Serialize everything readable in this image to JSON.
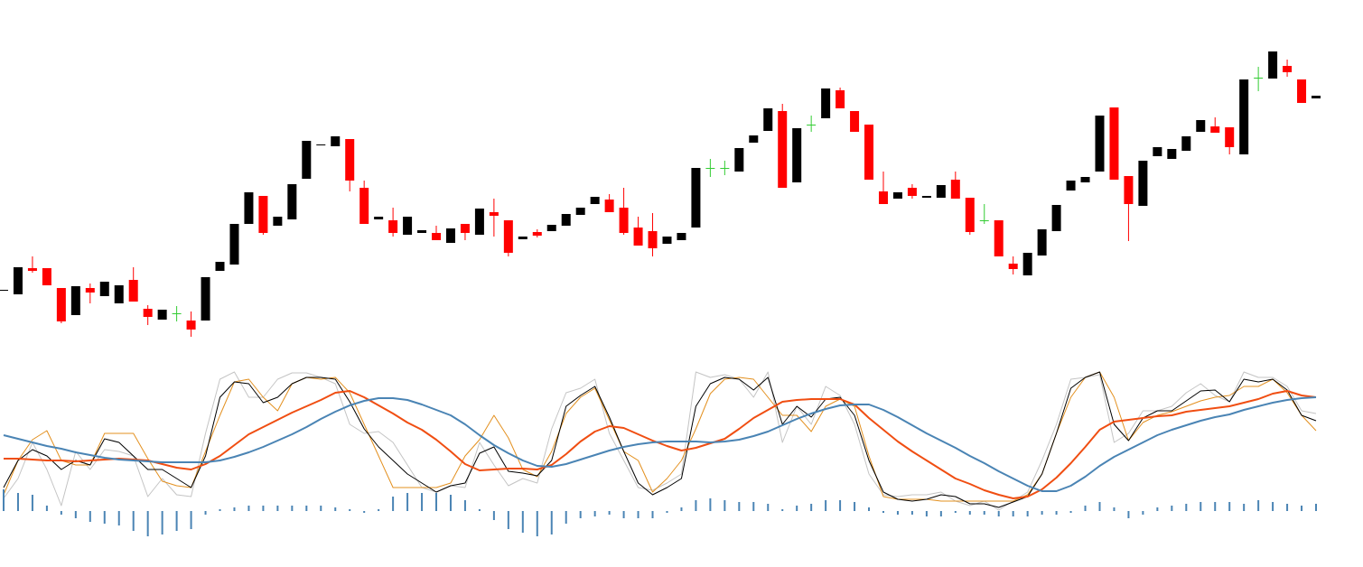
{
  "chart_data": [
    {
      "type": "candlestick",
      "ylim": [
        0,
        400
      ],
      "up_color": "#000000",
      "down_color": "#ff0000",
      "doji_color": "#33cc33",
      "open": [
        78,
        74,
        103,
        103,
        81,
        51,
        81,
        72,
        64,
        90,
        58,
        46,
        53,
        45,
        45,
        100,
        107,
        152,
        183,
        150,
        157,
        202,
        239,
        238,
        246,
        192,
        157,
        156,
        140,
        142,
        142,
        131,
        152,
        140,
        165,
        156,
        135,
        143,
        144,
        150,
        162,
        174,
        179,
        170,
        148,
        144,
        130,
        134,
        148,
        214,
        214,
        210,
        242,
        255,
        277,
        198,
        262,
        269,
        300,
        277,
        262,
        188,
        180,
        192,
        181,
        181,
        201,
        181,
        156,
        156,
        108,
        95,
        117,
        144,
        189,
        198,
        210,
        281,
        205,
        172,
        227,
        224,
        233,
        254,
        260,
        259,
        229,
        314,
        313,
        327,
        312,
        291
      ],
      "high": [
        79,
        104,
        116,
        103,
        81,
        83,
        86,
        88,
        84,
        104,
        62,
        57,
        61,
        55,
        93,
        110,
        152,
        187,
        183,
        160,
        196,
        244,
        240,
        249,
        246,
        200,
        160,
        170,
        160,
        145,
        150,
        147,
        152,
        169,
        180,
        156,
        138,
        146,
        151,
        163,
        170,
        182,
        185,
        192,
        160,
        164,
        138,
        142,
        214,
        224,
        222,
        236,
        250,
        280,
        285,
        258,
        272,
        302,
        303,
        277,
        262,
        210,
        187,
        196,
        183,
        195,
        210,
        181,
        174,
        156,
        116,
        120,
        146,
        173,
        200,
        204,
        272,
        281,
        205,
        222,
        237,
        235,
        249,
        267,
        270,
        259,
        312,
        326,
        343,
        334,
        312,
        294
      ],
      "low": [
        78,
        74,
        98,
        84,
        42,
        51,
        64,
        72,
        64,
        66,
        40,
        46,
        44,
        27,
        45,
        100,
        107,
        152,
        140,
        150,
        157,
        202,
        239,
        238,
        188,
        152,
        157,
        138,
        140,
        142,
        134,
        131,
        134,
        140,
        138,
        116,
        135,
        137,
        144,
        150,
        162,
        174,
        165,
        140,
        128,
        116,
        130,
        134,
        148,
        204,
        206,
        210,
        242,
        255,
        192,
        198,
        254,
        269,
        280,
        254,
        201,
        174,
        180,
        180,
        181,
        181,
        180,
        140,
        152,
        116,
        96,
        95,
        117,
        144,
        189,
        198,
        210,
        201,
        133,
        172,
        227,
        224,
        233,
        254,
        253,
        229,
        229,
        299,
        313,
        315,
        286,
        291
      ],
      "close": [
        79,
        104,
        100,
        84,
        44,
        83,
        76,
        88,
        84,
        66,
        49,
        57,
        53,
        35,
        93,
        110,
        152,
        187,
        142,
        160,
        196,
        244,
        240,
        249,
        200,
        152,
        160,
        142,
        160,
        145,
        134,
        147,
        142,
        169,
        161,
        120,
        138,
        139,
        151,
        163,
        170,
        182,
        165,
        142,
        128,
        125,
        138,
        142,
        214,
        214,
        214,
        236,
        250,
        280,
        192,
        258,
        262,
        302,
        280,
        254,
        201,
        174,
        187,
        183,
        183,
        195,
        180,
        143,
        156,
        116,
        102,
        120,
        146,
        173,
        200,
        204,
        272,
        201,
        174,
        222,
        237,
        235,
        249,
        267,
        253,
        237,
        312,
        314,
        343,
        320,
        286,
        294
      ]
    },
    {
      "type": "line",
      "ylim": [
        -10,
        160
      ],
      "series": [
        {
          "color": "#c4c4c4",
          "width": 1,
          "values": [
            8,
            30,
            70,
            40,
            0,
            60,
            40,
            62,
            60,
            55,
            10,
            30,
            12,
            10,
            80,
            140,
            148,
            120,
            120,
            140,
            147,
            147,
            142,
            135,
            90,
            80,
            82,
            70,
            45,
            20,
            15,
            22,
            20,
            70,
            45,
            22,
            30,
            25,
            85,
            125,
            130,
            140,
            80,
            50,
            20,
            17,
            25,
            35,
            148,
            142,
            145,
            140,
            120,
            148,
            70,
            110,
            90,
            132,
            122,
            90,
            35,
            12,
            10,
            12,
            12,
            15,
            5,
            0,
            5,
            -5,
            5,
            15,
            50,
            90,
            140,
            142,
            145,
            70,
            80,
            105,
            105,
            110,
            125,
            135,
            122,
            115,
            148,
            142,
            142,
            132,
            105,
            102
          ]
        },
        {
          "color": "#e3901f",
          "width": 1,
          "values": [
            12,
            50,
            73,
            83,
            50,
            45,
            45,
            80,
            80,
            80,
            52,
            27,
            22,
            20,
            60,
            100,
            137,
            140,
            120,
            105,
            135,
            142,
            140,
            142,
            125,
            90,
            55,
            20,
            20,
            20,
            20,
            25,
            55,
            73,
            100,
            75,
            40,
            32,
            60,
            102,
            120,
            130,
            95,
            60,
            50,
            15,
            30,
            50,
            85,
            124,
            140,
            142,
            140,
            120,
            100,
            100,
            82,
            110,
            118,
            110,
            55,
            10,
            7,
            7,
            7,
            5,
            5,
            5,
            5,
            5,
            5,
            12,
            35,
            80,
            120,
            142,
            148,
            120,
            72,
            92,
            100,
            104,
            110,
            116,
            120,
            122,
            132,
            132,
            140,
            125,
            100,
            83
          ]
        },
        {
          "color": "#000000",
          "width": 1,
          "values": [
            20,
            50,
            62,
            55,
            40,
            50,
            45,
            74,
            70,
            55,
            40,
            40,
            30,
            20,
            55,
            120,
            137,
            135,
            114,
            120,
            135,
            142,
            142,
            140,
            115,
            85,
            65,
            50,
            35,
            25,
            15,
            22,
            25,
            58,
            65,
            38,
            36,
            33,
            50,
            110,
            122,
            132,
            98,
            60,
            25,
            12,
            20,
            30,
            110,
            135,
            142,
            140,
            128,
            142,
            90,
            110,
            98,
            118,
            120,
            100,
            50,
            15,
            7,
            5,
            7,
            12,
            10,
            2,
            2,
            -2,
            4,
            10,
            35,
            80,
            130,
            142,
            148,
            90,
            72,
            97,
            105,
            105,
            116,
            127,
            128,
            115,
            140,
            137,
            140,
            128,
            100,
            94
          ]
        },
        {
          "color": "#f04e12",
          "width": 2,
          "values": [
            52,
            52,
            51,
            50,
            50,
            49,
            50,
            51,
            52,
            51,
            50,
            46,
            42,
            40,
            46,
            55,
            67,
            79,
            87,
            95,
            103,
            110,
            117,
            125,
            127,
            120,
            111,
            102,
            92,
            84,
            73,
            60,
            46,
            39,
            40,
            41,
            41,
            40,
            45,
            57,
            71,
            82,
            88,
            86,
            79,
            72,
            66,
            61,
            64,
            69,
            74,
            85,
            97,
            106,
            115,
            117,
            118,
            118,
            118,
            112,
            97,
            84,
            71,
            60,
            50,
            40,
            30,
            24,
            17,
            12,
            8,
            10,
            18,
            31,
            47,
            65,
            84,
            93,
            95,
            97,
            99,
            100,
            104,
            106,
            108,
            110,
            114,
            118,
            124,
            127,
            122,
            120
          ]
        },
        {
          "color": "#4a84b4",
          "width": 2,
          "values": [
            78,
            74,
            70,
            66,
            63,
            59,
            56,
            53,
            51,
            50,
            49,
            48,
            48,
            48,
            48,
            50,
            54,
            59,
            65,
            72,
            79,
            87,
            96,
            104,
            111,
            116,
            119,
            119,
            117,
            112,
            106,
            100,
            90,
            78,
            67,
            58,
            50,
            44,
            43,
            46,
            51,
            56,
            61,
            65,
            68,
            70,
            71,
            71,
            71,
            70,
            71,
            73,
            77,
            82,
            89,
            96,
            102,
            107,
            111,
            112,
            112,
            106,
            98,
            89,
            80,
            72,
            64,
            55,
            47,
            38,
            30,
            22,
            16,
            16,
            22,
            32,
            44,
            54,
            62,
            70,
            78,
            84,
            89,
            94,
            98,
            101,
            106,
            110,
            114,
            117,
            119,
            120
          ]
        }
      ]
    },
    {
      "type": "bar",
      "ylim": [
        -40,
        40
      ],
      "color": "#4a84b4",
      "values": [
        24,
        20,
        18,
        6,
        -4,
        -8,
        -12,
        -14,
        -16,
        -22,
        -28,
        -26,
        -22,
        -20,
        -4,
        2,
        4,
        6,
        6,
        6,
        6,
        6,
        6,
        4,
        2,
        -2,
        2,
        16,
        20,
        20,
        20,
        18,
        12,
        2,
        -10,
        -20,
        -24,
        -28,
        -26,
        -14,
        -8,
        -6,
        -4,
        -8,
        -8,
        -8,
        -2,
        4,
        12,
        14,
        12,
        10,
        10,
        8,
        2,
        6,
        8,
        12,
        12,
        10,
        4,
        -2,
        -4,
        -4,
        -6,
        -6,
        -2,
        -4,
        -4,
        -6,
        -6,
        -6,
        -4,
        -4,
        -2,
        6,
        10,
        4,
        -8,
        -4,
        4,
        6,
        8,
        10,
        10,
        10,
        8,
        12,
        10,
        8,
        6,
        8
      ]
    }
  ]
}
